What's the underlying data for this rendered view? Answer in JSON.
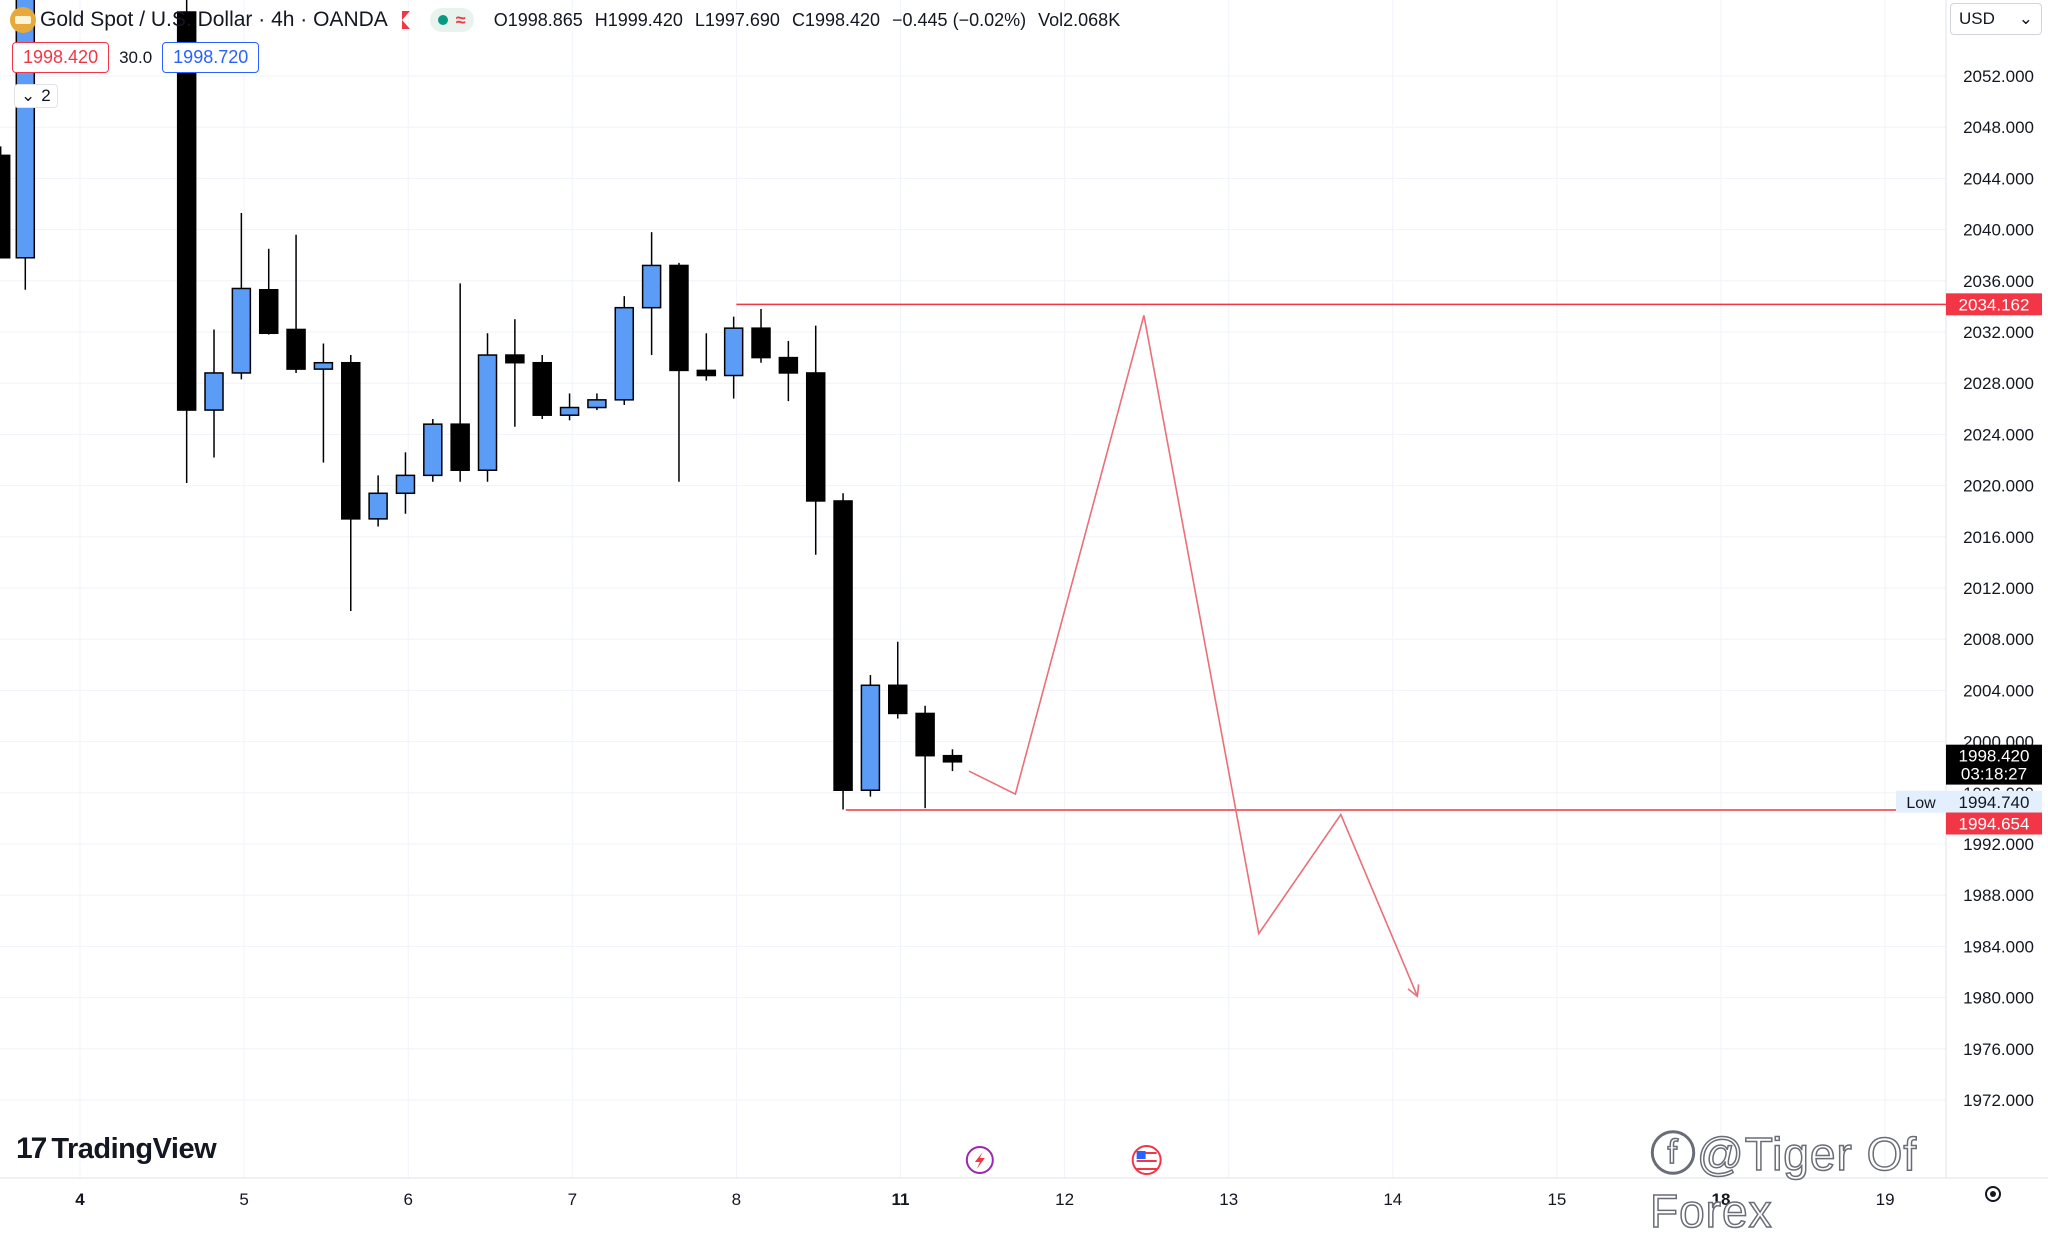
{
  "header": {
    "symbol_title": "Gold Spot / U.S. Dollar · 4h · OANDA",
    "ohlc": {
      "open": "O1998.865",
      "high": "H1999.420",
      "low": "L1997.690",
      "close": "C1998.420",
      "change": "−0.445 (−0.02%)",
      "volume": "Vol2.068K"
    },
    "sell_price": "1998.420",
    "spread": "30.0",
    "buy_price": "1998.720",
    "indicator_count": "2",
    "currency": "USD"
  },
  "colors": {
    "bull_body": "#5b9cf6",
    "bear_body": "#000000",
    "line_red": "#f23645",
    "grid": "#f0f3fa",
    "text": "#131722"
  },
  "chart_data": {
    "type": "candlestick",
    "y_range": [
      1968,
      2056
    ],
    "y_ticks": [
      "2052.000",
      "2048.000",
      "2044.000",
      "2040.000",
      "2036.000",
      "2032.000",
      "2028.000",
      "2024.000",
      "2020.000",
      "2016.000",
      "2012.000",
      "2008.000",
      "2004.000",
      "2000.000",
      "1996.000",
      "1992.000",
      "1988.000",
      "1984.000",
      "1980.000",
      "1976.000",
      "1972.000"
    ],
    "x_ticks": [
      {
        "label": "4",
        "x": 0,
        "bold": true
      },
      {
        "label": "5",
        "x": 6,
        "bold": false
      },
      {
        "label": "6",
        "x": 12,
        "bold": false
      },
      {
        "label": "7",
        "x": 18,
        "bold": false
      },
      {
        "label": "8",
        "x": 24,
        "bold": false
      },
      {
        "label": "11",
        "x": 30,
        "bold": true
      },
      {
        "label": "12",
        "x": 36,
        "bold": false
      },
      {
        "label": "13",
        "x": 42,
        "bold": false
      },
      {
        "label": "14",
        "x": 48,
        "bold": false
      },
      {
        "label": "15",
        "x": 54,
        "bold": false
      },
      {
        "label": "18",
        "x": 60,
        "bold": true
      },
      {
        "label": "19",
        "x": 66,
        "bold": false
      }
    ],
    "candles": [
      {
        "x": -2.9,
        "o": 2045.8,
        "h": 2046.5,
        "l": 2037.8,
        "c": 2037.8
      },
      {
        "x": -2.0,
        "o": 2037.8,
        "h": 2062.0,
        "l": 2035.3,
        "c": 2058.5
      },
      {
        "x": 3.9,
        "o": 2057.0,
        "h": 2058.0,
        "l": 2020.2,
        "c": 2025.9
      },
      {
        "x": 4.9,
        "o": 2025.9,
        "h": 2032.2,
        "l": 2022.2,
        "c": 2028.8
      },
      {
        "x": 5.9,
        "o": 2028.8,
        "h": 2041.3,
        "l": 2028.3,
        "c": 2035.4
      },
      {
        "x": 6.9,
        "o": 2035.3,
        "h": 2038.5,
        "l": 2031.8,
        "c": 2031.9
      },
      {
        "x": 7.9,
        "o": 2032.2,
        "h": 2039.6,
        "l": 2028.8,
        "c": 2029.1
      },
      {
        "x": 8.9,
        "o": 2029.1,
        "h": 2031.1,
        "l": 2021.8,
        "c": 2029.6
      },
      {
        "x": 9.9,
        "o": 2029.6,
        "h": 2030.2,
        "l": 2010.2,
        "c": 2017.4
      },
      {
        "x": 10.9,
        "o": 2017.4,
        "h": 2020.8,
        "l": 2016.8,
        "c": 2019.4
      },
      {
        "x": 11.9,
        "o": 2019.4,
        "h": 2022.6,
        "l": 2017.8,
        "c": 2020.8
      },
      {
        "x": 12.9,
        "o": 2020.8,
        "h": 2025.2,
        "l": 2020.3,
        "c": 2024.8
      },
      {
        "x": 13.9,
        "o": 2024.8,
        "h": 2035.8,
        "l": 2020.3,
        "c": 2021.2
      },
      {
        "x": 14.9,
        "o": 2021.2,
        "h": 2031.9,
        "l": 2020.3,
        "c": 2030.2
      },
      {
        "x": 15.9,
        "o": 2030.2,
        "h": 2033.0,
        "l": 2024.6,
        "c": 2029.6
      },
      {
        "x": 16.9,
        "o": 2029.6,
        "h": 2030.2,
        "l": 2025.2,
        "c": 2025.5
      },
      {
        "x": 17.9,
        "o": 2025.5,
        "h": 2027.2,
        "l": 2025.1,
        "c": 2026.1
      },
      {
        "x": 18.9,
        "o": 2026.1,
        "h": 2027.2,
        "l": 2025.9,
        "c": 2026.7
      },
      {
        "x": 19.9,
        "o": 2026.7,
        "h": 2034.8,
        "l": 2026.3,
        "c": 2033.9
      },
      {
        "x": 20.9,
        "o": 2033.9,
        "h": 2039.8,
        "l": 2030.2,
        "c": 2037.2
      },
      {
        "x": 21.9,
        "o": 2037.2,
        "h": 2037.4,
        "l": 2020.3,
        "c": 2029.0
      },
      {
        "x": 22.9,
        "o": 2029.0,
        "h": 2031.9,
        "l": 2028.2,
        "c": 2028.6
      },
      {
        "x": 23.9,
        "o": 2028.6,
        "h": 2033.2,
        "l": 2026.8,
        "c": 2032.3
      },
      {
        "x": 24.9,
        "o": 2032.3,
        "h": 2033.8,
        "l": 2029.6,
        "c": 2030.0
      },
      {
        "x": 25.9,
        "o": 2030.0,
        "h": 2031.3,
        "l": 2026.6,
        "c": 2028.8
      },
      {
        "x": 26.9,
        "o": 2028.8,
        "h": 2032.5,
        "l": 2014.6,
        "c": 2018.8
      },
      {
        "x": 27.9,
        "o": 2018.8,
        "h": 2019.4,
        "l": 1994.7,
        "c": 1996.2
      },
      {
        "x": 28.9,
        "o": 1996.2,
        "h": 2005.2,
        "l": 1995.7,
        "c": 2004.4
      },
      {
        "x": 29.9,
        "o": 2004.4,
        "h": 2007.8,
        "l": 2001.8,
        "c": 2002.2
      },
      {
        "x": 30.9,
        "o": 2002.2,
        "h": 2002.8,
        "l": 1994.8,
        "c": 1998.9
      },
      {
        "x": 31.9,
        "o": 1998.9,
        "h": 1999.4,
        "l": 1997.7,
        "c": 1998.42
      }
    ],
    "lines": [
      {
        "name": "resistance",
        "x1": 24.0,
        "x2": 68.7,
        "y": 2034.162
      },
      {
        "name": "support",
        "x1": 28.0,
        "x2": 68.7,
        "y": 1994.654
      }
    ],
    "projection": [
      {
        "x": 32.5,
        "y": 1997.7
      },
      {
        "x": 34.2,
        "y": 1995.9
      },
      {
        "x": 38.9,
        "y": 2033.3
      },
      {
        "x": 43.1,
        "y": 1985.0
      },
      {
        "x": 46.1,
        "y": 1994.3
      },
      {
        "x": 48.9,
        "y": 1980.1
      }
    ],
    "price_labels": [
      {
        "text": "2034.162",
        "y": 2034.162,
        "style": "red"
      },
      {
        "text": "1998.420",
        "y": 1998.9,
        "style": "black-top"
      },
      {
        "text": "03:18:27",
        "y": 1997.5,
        "style": "black-bottom"
      },
      {
        "text": "1994.740",
        "y": 1995.3,
        "style": "light"
      },
      {
        "text": "1994.654",
        "y": 1993.6,
        "style": "red"
      }
    ],
    "low_label": "Low",
    "time_events": [
      {
        "x": 32.9,
        "icon": "lightning-event-icon"
      },
      {
        "x": 39.0,
        "icon": "us-flag-event-icon"
      }
    ]
  },
  "footer": {
    "logo_text": "TradingView",
    "logo_mark": "17",
    "watermark": "ⓕ@Tiger Of Forex"
  }
}
